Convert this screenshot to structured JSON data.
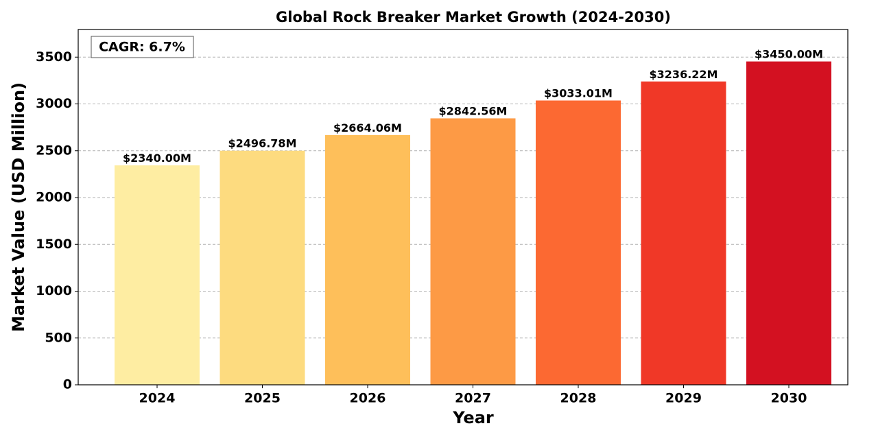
{
  "chart_data": {
    "type": "bar",
    "title": "Global Rock Breaker Market Growth (2024-2030)",
    "x_label": "Year",
    "y_label": "Market Value (USD Million)",
    "annotation": "CAGR: 6.7%",
    "categories": [
      "2024",
      "2025",
      "2026",
      "2027",
      "2028",
      "2029",
      "2030"
    ],
    "values": [
      2340.0,
      2496.78,
      2664.06,
      2842.56,
      3033.01,
      3236.22,
      3450.0
    ],
    "value_labels": [
      "$2340.00M",
      "$2496.78M",
      "$2664.06M",
      "$2842.56M",
      "$3033.01M",
      "$3236.22M",
      "$3450.00M"
    ],
    "colors": [
      "#feeda2",
      "#fddb7f",
      "#febf5a",
      "#fd9a45",
      "#fc6932",
      "#f03827",
      "#d31121"
    ],
    "ylim": [
      0,
      3795
    ],
    "yticks": [
      0,
      500,
      1000,
      1500,
      2000,
      2500,
      3000,
      3500
    ],
    "grid": true
  }
}
